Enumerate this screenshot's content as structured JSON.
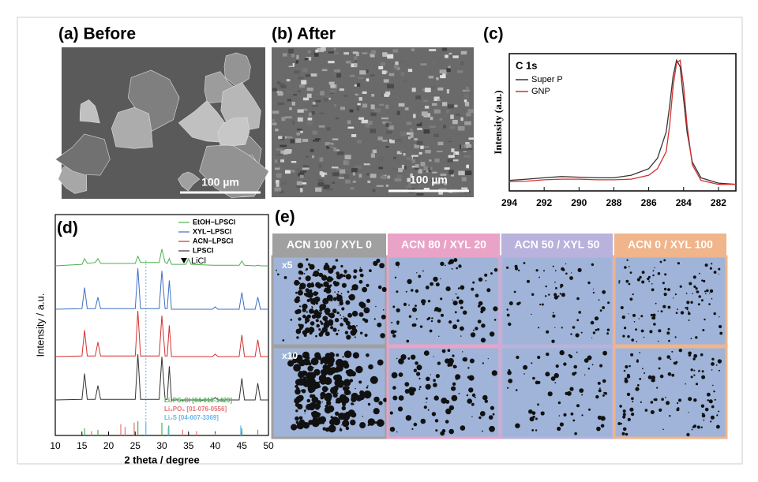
{
  "figure": {
    "a": {
      "label": "(a) Before",
      "scale_bar": "100 µm"
    },
    "b": {
      "label": "(b) After",
      "scale_bar": "100 µm"
    },
    "c": {
      "label": "(c)"
    },
    "d": {
      "label": "(d)",
      "marker_label": "LiCl",
      "references": [
        {
          "name": "Li₆PS₅Cl [04-018-1429]",
          "color": "#4caf50",
          "positions": [
            15.5,
            18,
            25.5,
            30,
            31.3,
            40,
            45,
            48
          ],
          "heights": [
            0.5,
            0.4,
            1,
            0.9,
            0.7,
            0.2,
            0.5,
            0.4
          ]
        },
        {
          "name": "Li₃PO₄ [01-076-0556]",
          "color": "#e57373",
          "positions": [
            16.8,
            22.3,
            23.1,
            24.8,
            33.9,
            36.5
          ],
          "heights": [
            0.3,
            0.8,
            0.6,
            0.9,
            0.4,
            0.3
          ]
        },
        {
          "name": "Li₂S [04-007-3369]",
          "color": "#64b5f6",
          "positions": [
            27,
            31.2,
            44.8
          ],
          "heights": [
            0.9,
            0.5,
            0.7
          ]
        }
      ]
    },
    "e": {
      "label": "(e)",
      "columns": [
        {
          "name": "ACN 100 / XYL 0",
          "color": "#a0a0a0"
        },
        {
          "name": "ACN 80 / XYL 20",
          "color": "#e9a3c6"
        },
        {
          "name": "ACN 50 / XYL 50",
          "color": "#b9b2dc"
        },
        {
          "name": "ACN 0 / XYL 100",
          "color": "#f0b58a"
        }
      ],
      "rows": [
        "x5",
        "x10"
      ]
    }
  },
  "chart_data": [
    {
      "type": "line",
      "title": "C 1s",
      "y_label": "Intensity (a.u.)",
      "x": [
        294,
        293,
        292,
        291,
        290,
        289,
        288,
        287,
        286,
        285.5,
        285,
        284.8,
        284.6,
        284.4,
        284.2,
        284,
        283.8,
        283.5,
        283,
        282,
        281
      ],
      "xlim": [
        294,
        281
      ],
      "xticks": [
        294,
        292,
        290,
        288,
        286,
        284,
        282
      ],
      "ylim": [
        0,
        1.05
      ],
      "series": [
        {
          "name": "Super P",
          "color": "#333333",
          "values": [
            0.08,
            0.09,
            0.1,
            0.11,
            0.105,
            0.1,
            0.1,
            0.12,
            0.17,
            0.25,
            0.45,
            0.65,
            0.88,
            1.0,
            0.95,
            0.7,
            0.45,
            0.22,
            0.1,
            0.06,
            0.05
          ]
        },
        {
          "name": "GNP",
          "color": "#d32f2f",
          "values": [
            0.07,
            0.075,
            0.085,
            0.09,
            0.09,
            0.085,
            0.085,
            0.09,
            0.12,
            0.17,
            0.3,
            0.5,
            0.8,
            0.98,
            1.0,
            0.8,
            0.5,
            0.2,
            0.08,
            0.05,
            0.05
          ]
        }
      ]
    },
    {
      "type": "line",
      "y_label": "Intensity / a.u.",
      "x_label": "2 theta / degree",
      "x": [
        10,
        15,
        15.5,
        16,
        17.5,
        18,
        18.5,
        25,
        25.5,
        26,
        29.5,
        30,
        30.6,
        31,
        31.4,
        31.8,
        34.5,
        35,
        35.5,
        39.5,
        40,
        40.5,
        44.5,
        45,
        45.5,
        47.5,
        48,
        48.5,
        50
      ],
      "xlim": [
        10,
        50
      ],
      "xticks": [
        10,
        15,
        20,
        25,
        30,
        35,
        40,
        45,
        50
      ],
      "ylim": [
        0,
        4.6
      ],
      "series": [
        {
          "name": "EtOH−LPSCl",
          "color": "#4caf50",
          "values": [
            0.05,
            0.08,
            0.2,
            0.1,
            0.12,
            0.2,
            0.1,
            0.1,
            0.25,
            0.12,
            0.12,
            0.4,
            0.12,
            0.1,
            0.2,
            0.08,
            0.08,
            0.2,
            0.08,
            0.06,
            0.06,
            0.06,
            0.06,
            0.15,
            0.06,
            0.05,
            0.06,
            0.05,
            0.05
          ]
        },
        {
          "name": "XYL−LPSCl",
          "color": "#3f6fc4",
          "values": [
            0.05,
            0.06,
            0.5,
            0.06,
            0.06,
            0.3,
            0.06,
            0.06,
            0.9,
            0.06,
            0.06,
            0.85,
            0.06,
            0.06,
            0.65,
            0.05,
            0.05,
            0.05,
            0.05,
            0.05,
            0.1,
            0.05,
            0.05,
            0.4,
            0.05,
            0.05,
            0.3,
            0.05,
            0.05
          ]
        },
        {
          "name": "ACN−LPSCl",
          "color": "#d32f2f",
          "values": [
            0.05,
            0.06,
            0.6,
            0.06,
            0.06,
            0.35,
            0.06,
            0.06,
            1.0,
            0.06,
            0.06,
            0.9,
            0.06,
            0.06,
            0.7,
            0.05,
            0.05,
            0.05,
            0.05,
            0.05,
            0.1,
            0.05,
            0.05,
            0.5,
            0.05,
            0.05,
            0.4,
            0.05,
            0.05
          ]
        },
        {
          "name": "LPSCl",
          "color": "#333333",
          "values": [
            0.05,
            0.06,
            0.6,
            0.06,
            0.06,
            0.35,
            0.06,
            0.06,
            1.0,
            0.06,
            0.06,
            0.95,
            0.06,
            0.06,
            0.75,
            0.05,
            0.05,
            0.05,
            0.05,
            0.05,
            0.1,
            0.05,
            0.05,
            0.5,
            0.05,
            0.05,
            0.4,
            0.05,
            0.05
          ]
        }
      ]
    }
  ]
}
